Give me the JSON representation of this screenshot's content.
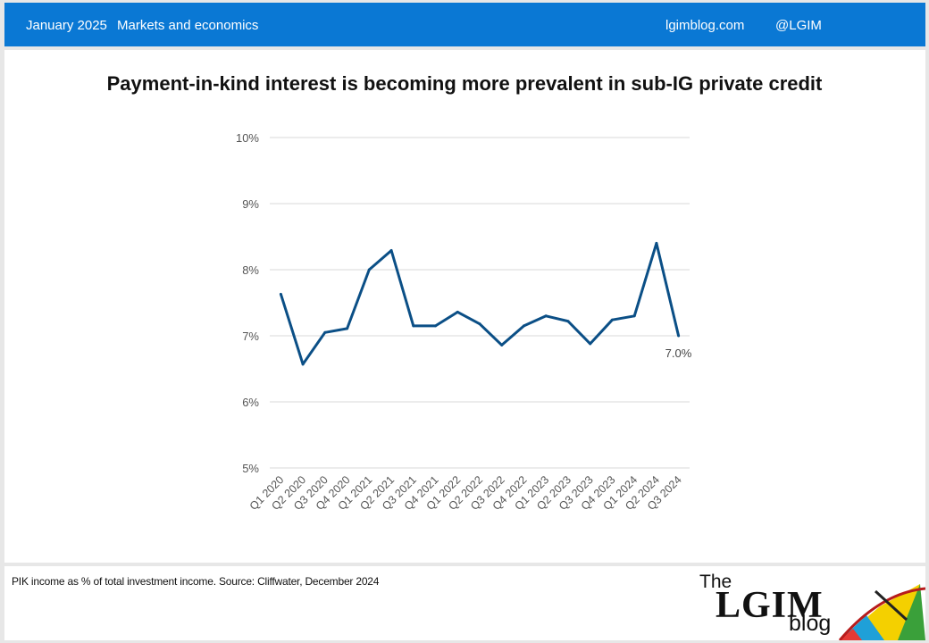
{
  "header": {
    "date": "January 2025",
    "category": "Markets and economics",
    "website": "lgimblog.com",
    "handle": "@LGIM"
  },
  "footer": {
    "source": "PIK income as % of total investment income. Source: Cliffwater, December 2024",
    "logo": {
      "the": "The",
      "name": "LGIM",
      "blog": "blog"
    }
  },
  "colors": {
    "header_bg": "#0a78d4",
    "line": "#0b4f86",
    "grid": "#d9d9d9"
  },
  "chart_data": {
    "type": "line",
    "title": "Payment-in-kind interest is becoming more prevalent in sub-IG private credit",
    "xlabel": "",
    "ylabel": "",
    "ylim": [
      5,
      10
    ],
    "yticks": [
      "5%",
      "6%",
      "7%",
      "8%",
      "9%",
      "10%"
    ],
    "grid": true,
    "categories": [
      "Q1 2020",
      "Q2 2020",
      "Q3 2020",
      "Q4 2020",
      "Q1 2021",
      "Q2 2021",
      "Q3 2021",
      "Q4 2021",
      "Q1 2022",
      "Q2 2022",
      "Q3 2022",
      "Q4 2022",
      "Q1 2023",
      "Q2 2023",
      "Q3 2023",
      "Q4 2023",
      "Q1 2024",
      "Q2 2024",
      "Q3 2024"
    ],
    "series": [
      {
        "values": [
          7.63,
          6.57,
          7.05,
          7.11,
          8.0,
          8.29,
          7.15,
          7.15,
          7.36,
          7.18,
          6.86,
          7.15,
          7.3,
          7.22,
          6.88,
          7.24,
          7.3,
          8.4,
          7.0
        ]
      }
    ],
    "annotations": [
      {
        "category": "Q3 2024",
        "text": "7.0%"
      }
    ]
  }
}
